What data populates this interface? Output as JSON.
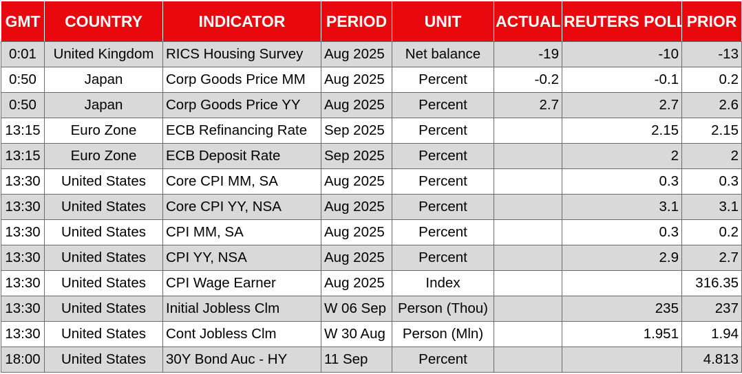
{
  "headers": {
    "gmt": "GMT",
    "country": "COUNTRY",
    "indicator": "INDICATOR",
    "period": "PERIOD",
    "unit": "UNIT",
    "actual": "ACTUAL",
    "reuters_poll": "REUTERS POLL",
    "prior": "PRIOR"
  },
  "colors": {
    "header_background": "#e8080e",
    "header_text": "#ffffff",
    "row_shade": "#d9d9d9",
    "row_plain": "#ffffff"
  },
  "rows": [
    {
      "gmt": "0:01",
      "country": "United Kingdom",
      "indicator": "RICS Housing Survey",
      "period": "Aug 2025",
      "unit": "Net balance",
      "actual": "-19",
      "poll": "-10",
      "prior": "-13"
    },
    {
      "gmt": "0:50",
      "country": "Japan",
      "indicator": "Corp Goods Price MM",
      "period": "Aug 2025",
      "unit": "Percent",
      "actual": "-0.2",
      "poll": "-0.1",
      "prior": "0.2"
    },
    {
      "gmt": "0:50",
      "country": "Japan",
      "indicator": "Corp Goods Price YY",
      "period": "Aug 2025",
      "unit": "Percent",
      "actual": "2.7",
      "poll": "2.7",
      "prior": "2.6"
    },
    {
      "gmt": "13:15",
      "country": "Euro Zone",
      "indicator": "ECB Refinancing Rate",
      "period": "Sep 2025",
      "unit": "Percent",
      "actual": "",
      "poll": "2.15",
      "prior": "2.15"
    },
    {
      "gmt": "13:15",
      "country": "Euro Zone",
      "indicator": "ECB Deposit Rate",
      "period": "Sep 2025",
      "unit": "Percent",
      "actual": "",
      "poll": "2",
      "prior": "2"
    },
    {
      "gmt": "13:30",
      "country": "United States",
      "indicator": "Core CPI MM, SA",
      "period": "Aug 2025",
      "unit": "Percent",
      "actual": "",
      "poll": "0.3",
      "prior": "0.3"
    },
    {
      "gmt": "13:30",
      "country": "United States",
      "indicator": "Core CPI YY, NSA",
      "period": "Aug 2025",
      "unit": "Percent",
      "actual": "",
      "poll": "3.1",
      "prior": "3.1"
    },
    {
      "gmt": "13:30",
      "country": "United States",
      "indicator": "CPI MM, SA",
      "period": "Aug 2025",
      "unit": "Percent",
      "actual": "",
      "poll": "0.3",
      "prior": "0.2"
    },
    {
      "gmt": "13:30",
      "country": "United States",
      "indicator": "CPI YY, NSA",
      "period": "Aug 2025",
      "unit": "Percent",
      "actual": "",
      "poll": "2.9",
      "prior": "2.7"
    },
    {
      "gmt": "13:30",
      "country": "United States",
      "indicator": "CPI Wage Earner",
      "period": "Aug 2025",
      "unit": "Index",
      "actual": "",
      "poll": "",
      "prior": "316.35"
    },
    {
      "gmt": "13:30",
      "country": "United States",
      "indicator": "Initial Jobless Clm",
      "period": "W 06 Sep",
      "unit": "Person (Thou)",
      "actual": "",
      "poll": "235",
      "prior": "237"
    },
    {
      "gmt": "13:30",
      "country": "United States",
      "indicator": "Cont Jobless Clm",
      "period": "W 30 Aug",
      "unit": "Person (Mln)",
      "actual": "",
      "poll": "1.951",
      "prior": "1.94"
    },
    {
      "gmt": "18:00",
      "country": "United States",
      "indicator": "30Y Bond Auc - HY",
      "period": "11 Sep",
      "unit": "Percent",
      "actual": "",
      "poll": "",
      "prior": "4.813"
    }
  ]
}
